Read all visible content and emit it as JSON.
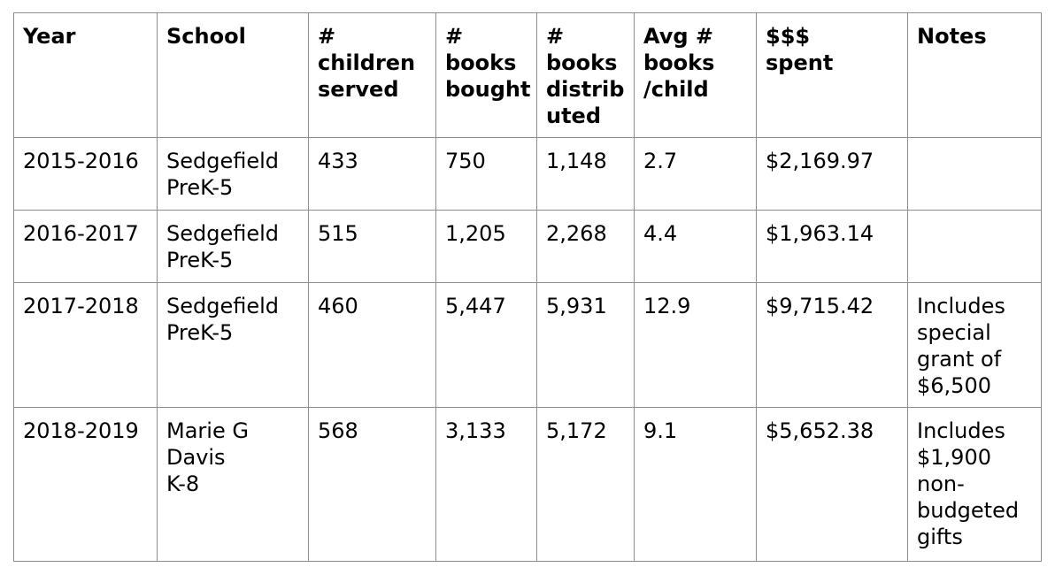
{
  "table": {
    "headers": [
      "Year",
      "School",
      "          #\nchildren\n served",
      "     #\nbooks\nbought",
      "#\nbooks\ndistrib\nuted",
      "   Avg #\nbooks\n/child",
      "   $$$\n spent",
      "Notes"
    ],
    "rows": [
      [
        "2015-2016",
        "Sedgefield\n    PreK-5",
        "433",
        "750",
        "1,148",
        "2.7",
        "$2,169.97",
        ""
      ],
      [
        "2016-2017",
        "Sedgefield\n    PreK-5",
        "515",
        "1,205",
        "2,268",
        "4.4",
        "$1,963.14",
        ""
      ],
      [
        "2017-2018",
        "Sedgefield\n    PreK-5",
        "460",
        "5,447",
        "5,931",
        "12.9",
        "$9,715.42",
        "Includes\nspecial\ngrant of\n$6,500"
      ],
      [
        "2018-2019",
        "Marie G\nDavis\n     K-8",
        "568",
        "3,133",
        "5,172",
        "9.1",
        "$5,652.38",
        "Includes\n$1,900\nnon-\nbudgeted\ngifts"
      ]
    ]
  }
}
